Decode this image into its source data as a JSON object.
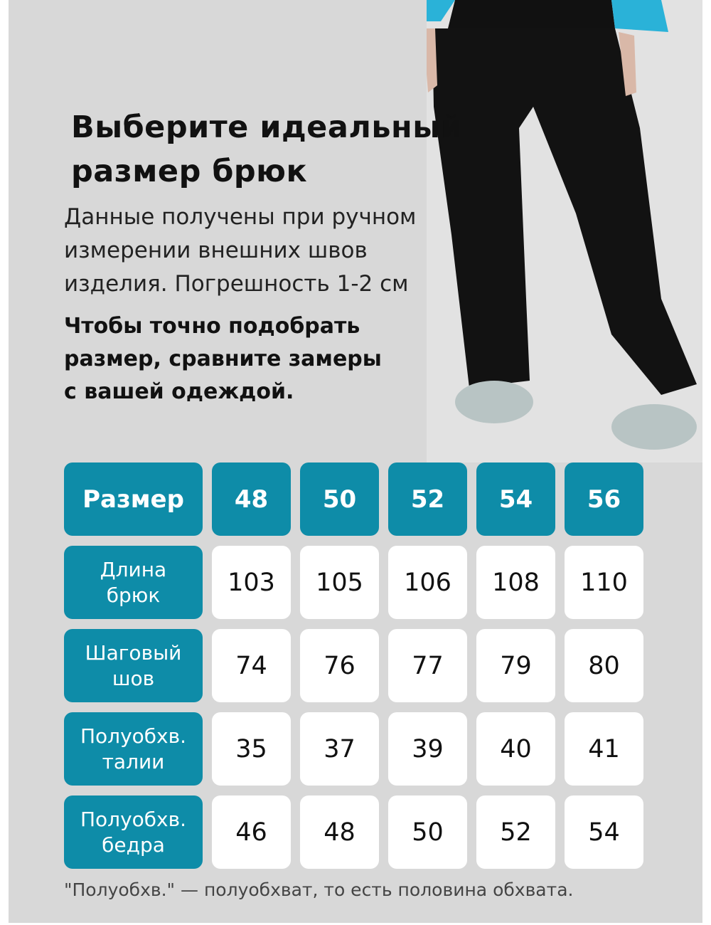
{
  "title": [
    "Выберите идеальный",
    "размер брюк"
  ],
  "subtitle": [
    "Данные получены при ручном",
    "измерении внешних швов",
    "изделия. Погрешность 1-2 см"
  ],
  "emphasis": [
    "Чтобы точно подобрать",
    "размер, сравните замеры",
    "с вашей одеждой."
  ],
  "colors": {
    "accent": "#0e8ca8",
    "background": "#d8d8d8"
  },
  "table": {
    "header_label": "Размер",
    "sizes": [
      "48",
      "50",
      "52",
      "54",
      "56"
    ],
    "rows": [
      {
        "label": [
          "Длина",
          "брюк"
        ],
        "values": [
          "103",
          "105",
          "106",
          "108",
          "110"
        ]
      },
      {
        "label": [
          "Шаговый",
          "шов"
        ],
        "values": [
          "74",
          "76",
          "77",
          "79",
          "80"
        ]
      },
      {
        "label": [
          "Полуобхв.",
          "талии"
        ],
        "values": [
          "35",
          "37",
          "39",
          "40",
          "41"
        ]
      },
      {
        "label": [
          "Полуобхв.",
          "бедра"
        ],
        "values": [
          "46",
          "48",
          "50",
          "52",
          "54"
        ]
      }
    ]
  },
  "footnote": "\"Полуобхв.\" — полуобхват, то есть половина обхвата."
}
